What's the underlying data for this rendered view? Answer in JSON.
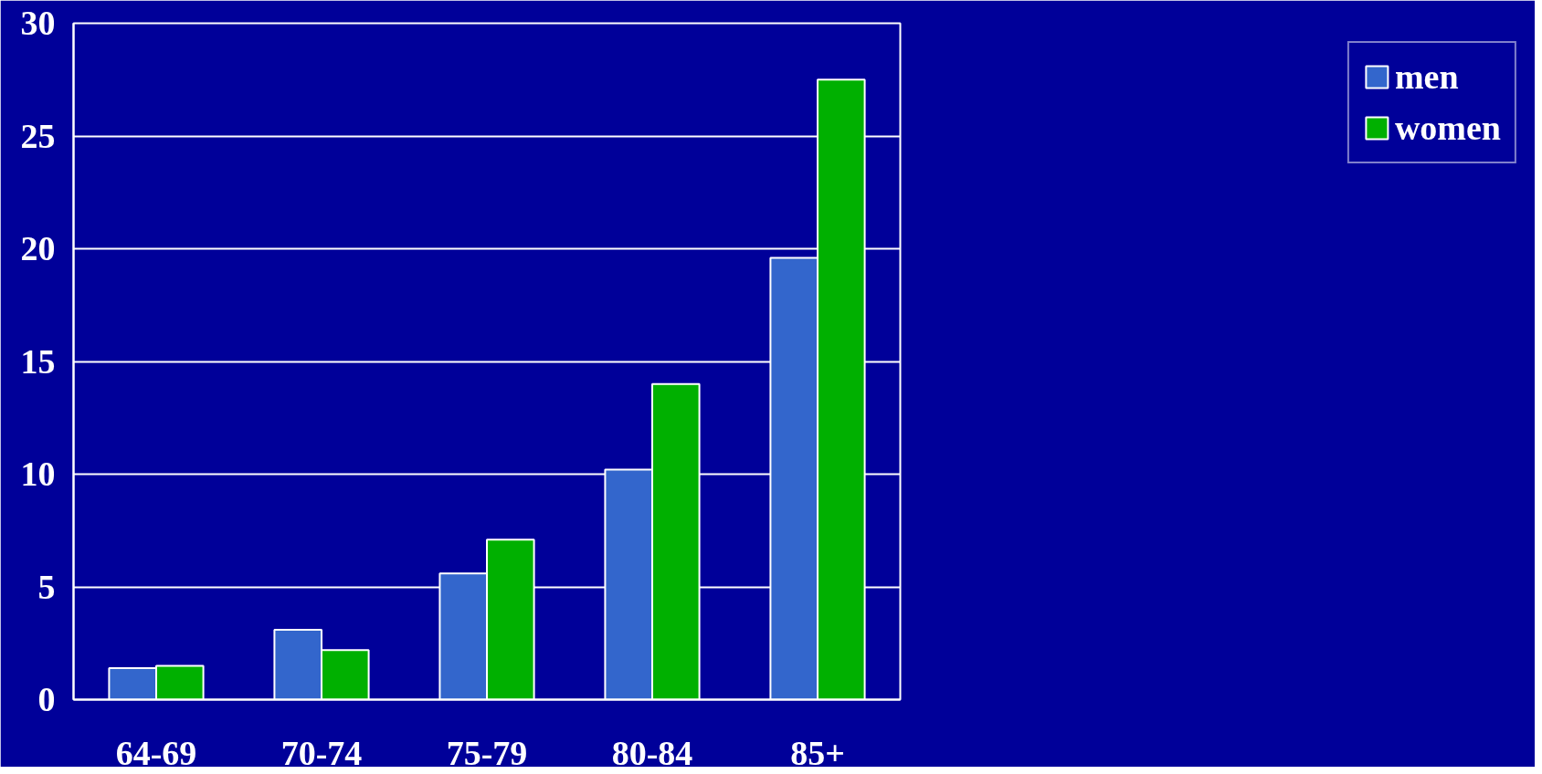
{
  "chart_data": {
    "type": "bar",
    "categories": [
      "64-69",
      "70-74",
      "75-79",
      "80-84",
      "85+"
    ],
    "series": [
      {
        "name": "men",
        "color": "#3366cc",
        "values": [
          1.4,
          3.1,
          5.6,
          10.2,
          19.6
        ]
      },
      {
        "name": "women",
        "color": "#00b000",
        "values": [
          1.5,
          2.2,
          7.1,
          14.0,
          27.5
        ]
      }
    ],
    "ylim": [
      0,
      30
    ],
    "yticks": [
      0,
      5,
      10,
      15,
      20,
      25,
      30
    ],
    "grid": "y",
    "legend": "right"
  }
}
